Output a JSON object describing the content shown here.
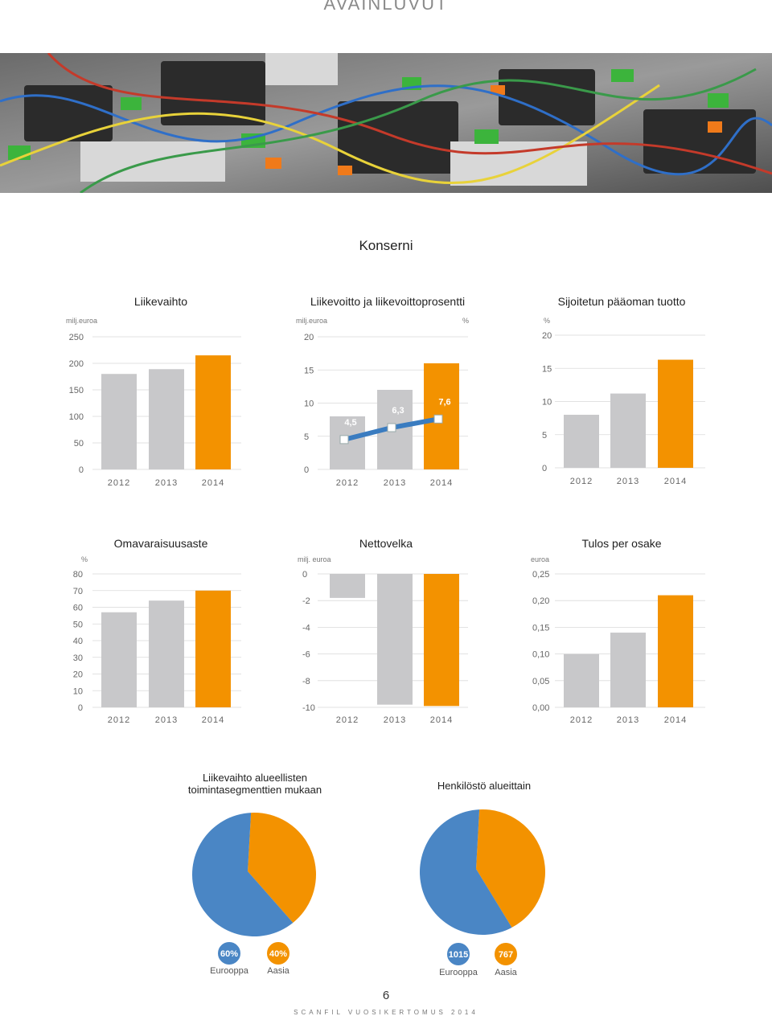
{
  "header": {
    "title": "AVAINLUVUT"
  },
  "section": {
    "title": "Konserni"
  },
  "colors": {
    "gray": "#c8c8ca",
    "orange": "#f39200",
    "blue": "#4a86c5",
    "line_blue": "#3a7cc0"
  },
  "chart_data": [
    {
      "type": "bar",
      "title": "Liikevaihto",
      "ylabel": "milj.euroa",
      "categories": [
        "2012",
        "2013",
        "2014"
      ],
      "values": [
        180,
        189,
        215
      ],
      "ylim": [
        0,
        250
      ],
      "yticks": [
        "0",
        "50",
        "100",
        "150",
        "200",
        "250"
      ]
    },
    {
      "type": "bar",
      "title": "Liikevoitto ja liikevoittoprosentti",
      "ylabel": "milj.euroa",
      "y2label": "%",
      "categories": [
        "2012",
        "2013",
        "2014"
      ],
      "values": [
        8,
        12,
        16
      ],
      "line_values": [
        4.5,
        6.3,
        7.6
      ],
      "line_labels": [
        "4,5",
        "6,3",
        "7,6"
      ],
      "ylim": [
        0,
        20
      ],
      "yticks": [
        "0",
        "5",
        "10",
        "15",
        "20"
      ]
    },
    {
      "type": "bar",
      "title": "Sijoitetun pääoman tuotto",
      "ylabel": "%",
      "categories": [
        "2012",
        "2013",
        "2014"
      ],
      "values": [
        8,
        11.2,
        16.3
      ],
      "ylim": [
        0,
        20
      ],
      "yticks": [
        "0",
        "5",
        "10",
        "15",
        "20"
      ]
    },
    {
      "type": "bar",
      "title": "Omavaraisuusaste",
      "ylabel": "%",
      "categories": [
        "2012",
        "2013",
        "2014"
      ],
      "values": [
        57,
        64,
        70
      ],
      "ylim": [
        0,
        80
      ],
      "yticks": [
        "0",
        "10",
        "20",
        "30",
        "40",
        "50",
        "60",
        "70",
        "80"
      ]
    },
    {
      "type": "bar",
      "title": "Nettovelka",
      "ylabel": "milj. euroa",
      "categories": [
        "2012",
        "2013",
        "2014"
      ],
      "values": [
        -1.8,
        -9.8,
        -9.9
      ],
      "ylim": [
        -10,
        0
      ],
      "yticks": [
        "-10",
        "-8",
        "-6",
        "-4",
        "-2",
        "0"
      ]
    },
    {
      "type": "bar",
      "title": "Tulos per osake",
      "ylabel": "euroa",
      "categories": [
        "2012",
        "2013",
        "2014"
      ],
      "values": [
        0.1,
        0.14,
        0.21
      ],
      "ylim": [
        0,
        0.25
      ],
      "yticks": [
        "0,00",
        "0,05",
        "0,10",
        "0,15",
        "0,20",
        "0,25"
      ]
    },
    {
      "type": "pie",
      "title": "Liikevaihto alueellisten toimintasegmenttien mukaan",
      "labels": [
        "Eurooppa",
        "Aasia"
      ],
      "values": [
        60,
        40
      ],
      "value_labels": [
        "60%",
        "40%"
      ]
    },
    {
      "type": "pie",
      "title": "Henkilöstö alueittain",
      "labels": [
        "Eurooppa",
        "Aasia"
      ],
      "values": [
        1015,
        767
      ],
      "value_labels": [
        "1015",
        "767"
      ]
    }
  ],
  "footer": {
    "page": "6",
    "text": "SCANFIL VUOSIKERTOMUS 2014"
  }
}
